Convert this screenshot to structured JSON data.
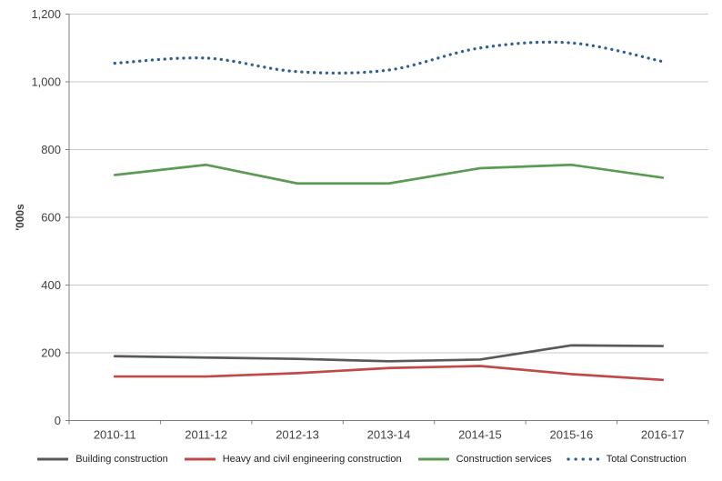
{
  "chart_data": {
    "type": "line",
    "title": "",
    "ylabel": "'000s",
    "xlabel": "",
    "ylim": [
      0,
      1200
    ],
    "ytick_labels": [
      "0",
      "200",
      "400",
      "600",
      "800",
      "1,000",
      "1,200"
    ],
    "categories": [
      "2010-11",
      "2011-12",
      "2012-13",
      "2013-14",
      "2014-15",
      "2015-16",
      "2016-17"
    ],
    "series": [
      {
        "name": "Building construction",
        "color": "#595959",
        "style": "solid",
        "smooth": false,
        "values": [
          190,
          186,
          182,
          175,
          180,
          222,
          220
        ]
      },
      {
        "name": "Heavy and civil engineering construction",
        "color": "#be4b48",
        "style": "solid",
        "smooth": false,
        "values": [
          130,
          130,
          140,
          155,
          161,
          137,
          120
        ]
      },
      {
        "name": "Construction services",
        "color": "#5b9b55",
        "style": "solid",
        "smooth": false,
        "values": [
          725,
          755,
          700,
          700,
          745,
          755,
          717
        ]
      },
      {
        "name": "Total Construction",
        "color": "#2f5f96",
        "style": "dotted",
        "smooth": true,
        "values": [
          1055,
          1070,
          1030,
          1035,
          1100,
          1115,
          1060
        ]
      }
    ],
    "legend_position": "bottom",
    "grid": true,
    "colors": {
      "gridline": "#c9c9c9",
      "axis": "#7f7f7f",
      "tick_text": "#3f3f3f",
      "legend_text": "#1f1f1f",
      "background": "#ffffff"
    }
  }
}
